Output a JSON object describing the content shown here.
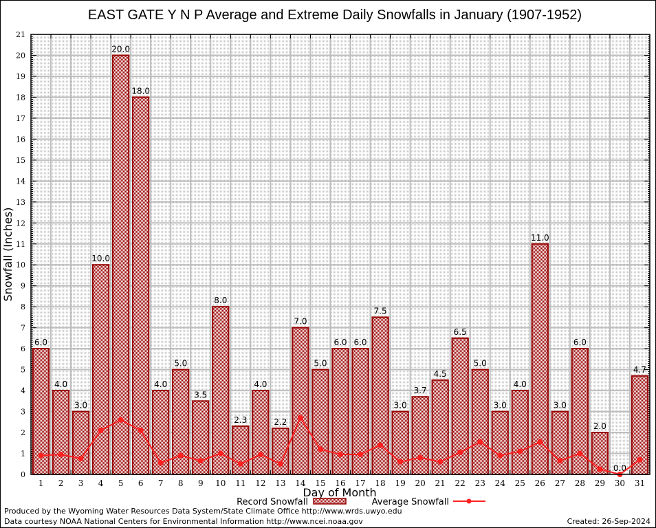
{
  "chart_data": {
    "type": "bar",
    "title": "EAST GATE Y N P Average and Extreme Daily Snowfalls in January (1907-1952)",
    "xlabel": "Day of Month",
    "ylabel": "Snowfall (Inches)",
    "ylim": [
      0,
      21
    ],
    "yticks": [
      0,
      1,
      2,
      3,
      4,
      5,
      6,
      7,
      8,
      9,
      10,
      11,
      12,
      13,
      14,
      15,
      16,
      17,
      18,
      19,
      20,
      21
    ],
    "grid": true,
    "categories": [
      "1",
      "2",
      "3",
      "4",
      "5",
      "6",
      "7",
      "8",
      "9",
      "10",
      "11",
      "12",
      "13",
      "14",
      "15",
      "16",
      "17",
      "18",
      "19",
      "20",
      "21",
      "22",
      "23",
      "24",
      "25",
      "26",
      "27",
      "28",
      "29",
      "30",
      "31"
    ],
    "series": [
      {
        "name": "Record Snowfall",
        "type": "bar",
        "color": "#990000",
        "values": [
          6.0,
          4.0,
          3.0,
          10.0,
          20.0,
          18.0,
          4.0,
          5.0,
          3.5,
          8.0,
          2.3,
          4.0,
          2.2,
          7.0,
          5.0,
          6.0,
          6.0,
          7.5,
          3.0,
          3.7,
          4.5,
          6.5,
          5.0,
          3.0,
          4.0,
          11.0,
          3.0,
          6.0,
          2.0,
          0.0,
          4.7
        ],
        "labels": [
          "6.0",
          "4.0",
          "3.0",
          "10.0",
          "20.0",
          "18.0",
          "4.0",
          "5.0",
          "3.5",
          "8.0",
          "2.3",
          "4.0",
          "2.2",
          "7.0",
          "5.0",
          "6.0",
          "6.0",
          "7.5",
          "3.0",
          "3.7",
          "4.5",
          "6.5",
          "5.0",
          "3.0",
          "4.0",
          "11.0",
          "3.0",
          "6.0",
          "2.0",
          "0.0",
          "4.7"
        ]
      },
      {
        "name": "Average Snowfall",
        "type": "line",
        "color": "#ff2020",
        "values": [
          0.9,
          0.95,
          0.75,
          2.1,
          2.6,
          2.1,
          0.55,
          0.9,
          0.65,
          1.0,
          0.5,
          0.95,
          0.5,
          2.7,
          1.2,
          0.95,
          0.95,
          1.4,
          0.6,
          0.8,
          0.6,
          1.05,
          1.55,
          0.9,
          1.1,
          1.55,
          0.65,
          1.0,
          0.25,
          0.0,
          0.7
        ]
      }
    ],
    "legend": {
      "position": "bottom-center",
      "entries": [
        "Record Snowfall",
        "Average Snowfall"
      ]
    }
  },
  "footer": {
    "line1": "Produced by the Wyoming Water Resources Data System/State Climate Office http://www.wrds.uwyo.edu",
    "line2": "Data courtesy NOAA National Centers for Environmental Information http://www.ncei.noaa.gov",
    "created": "Created:  26-Sep-2024"
  }
}
